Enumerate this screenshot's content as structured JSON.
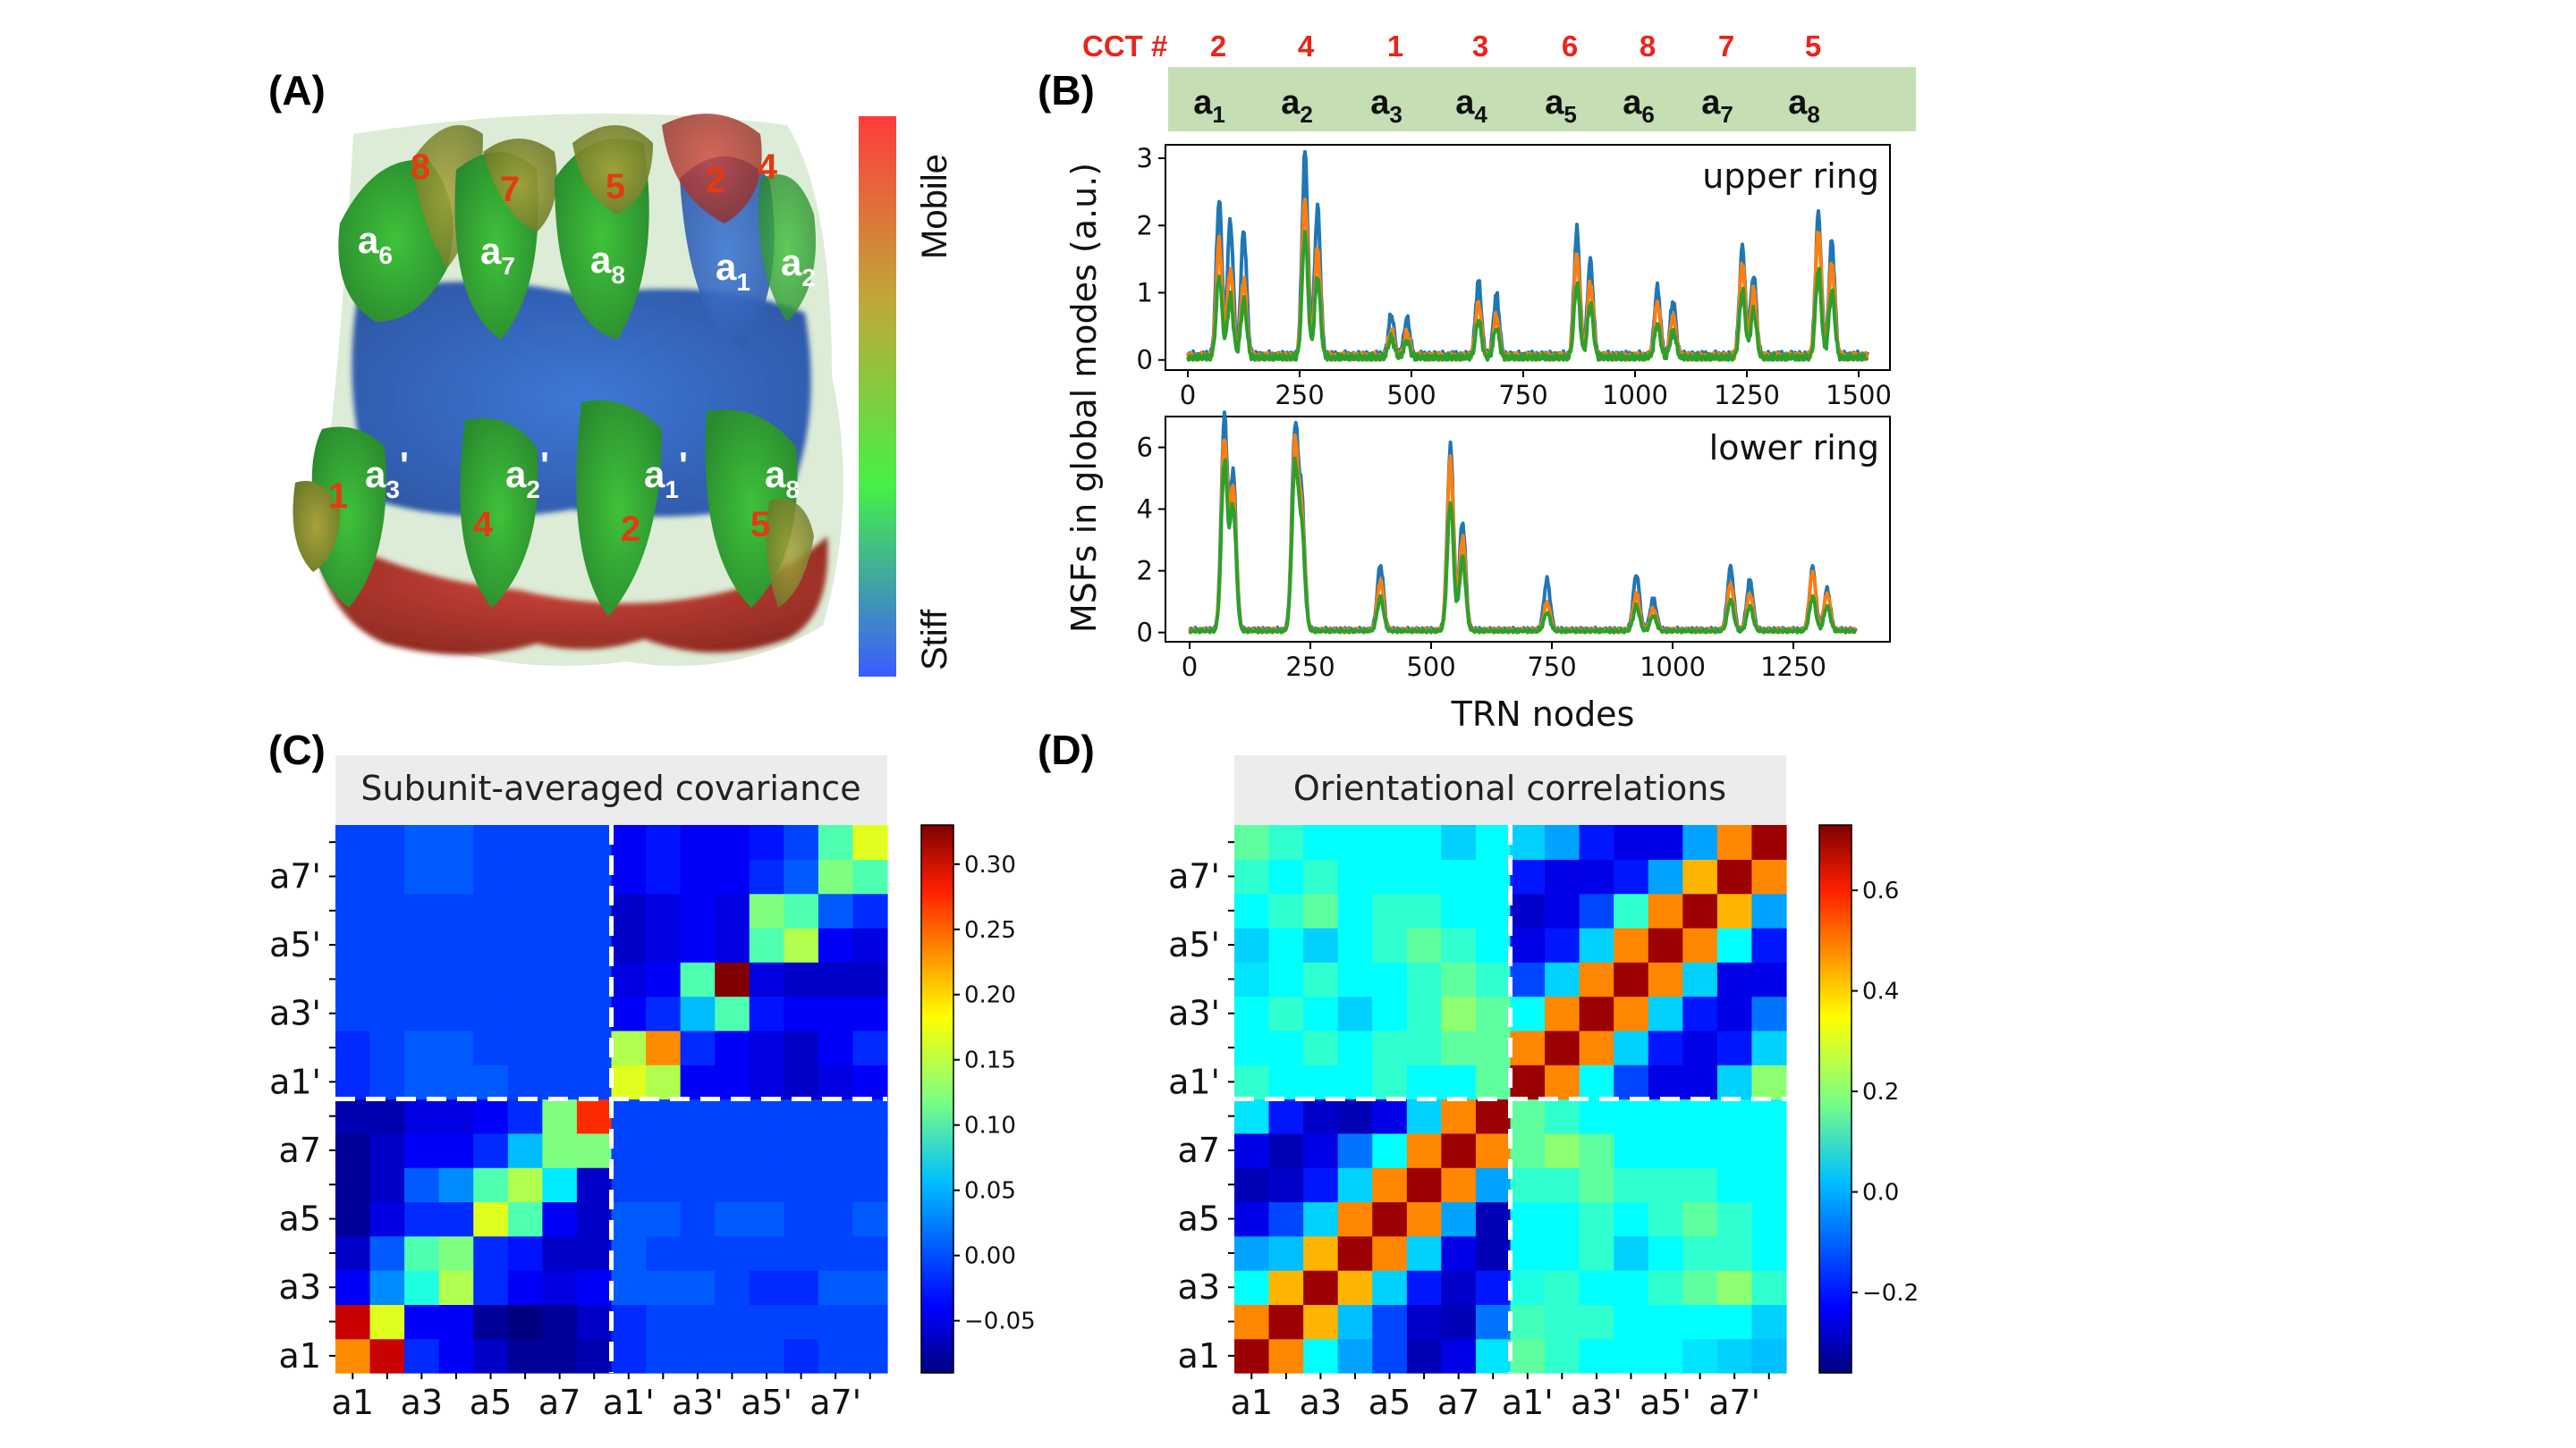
{
  "panel_labels": {
    "A": "(A)",
    "B": "(B)",
    "C": "(C)",
    "D": "(D)"
  },
  "panelA": {
    "colorbar_top": "Mobile",
    "colorbar_bottom": "Stiff",
    "colorbar_colors": [
      "#ff3b3b",
      "#c0a838",
      "#46f046",
      "#3b5bff"
    ],
    "cct_numbers": [
      {
        "text": "8"
      },
      {
        "text": "7"
      },
      {
        "text": "5"
      },
      {
        "text": "2"
      },
      {
        "text": "4"
      },
      {
        "text": "1"
      },
      {
        "text": "4"
      },
      {
        "text": "2"
      },
      {
        "text": "5"
      }
    ],
    "subunit_labels": [
      {
        "base": "a",
        "sub": "6",
        "prime": ""
      },
      {
        "base": "a",
        "sub": "7",
        "prime": ""
      },
      {
        "base": "a",
        "sub": "8",
        "prime": ""
      },
      {
        "base": "a",
        "sub": "1",
        "prime": ""
      },
      {
        "base": "a",
        "sub": "2",
        "prime": ""
      },
      {
        "base": "a",
        "sub": "3",
        "prime": "'"
      },
      {
        "base": "a",
        "sub": "2",
        "prime": "'"
      },
      {
        "base": "a",
        "sub": "1",
        "prime": "'"
      },
      {
        "base": "a",
        "sub": "8",
        "prime": ""
      }
    ]
  },
  "panelB": {
    "cct_header": "CCT #",
    "cct_numbers": [
      "2",
      "4",
      "1",
      "3",
      "6",
      "8",
      "7",
      "5"
    ],
    "subunits": [
      "1",
      "2",
      "3",
      "4",
      "5",
      "6",
      "7",
      "8"
    ],
    "subunit_base": "a",
    "banner_color": "#c5deb4",
    "ylabel": "MSFs in global modes (a.u.)",
    "xlabel": "TRN nodes",
    "series_colors": [
      "#1f77b4",
      "#ff7f0e",
      "#2ca02c"
    ]
  },
  "chart_data": [
    {
      "type": "line",
      "title": "upper ring",
      "xlim": [
        -50,
        1570
      ],
      "ylim": [
        -0.15,
        3.2
      ],
      "xticks": [
        "0",
        "250",
        "500",
        "750",
        "1000",
        "1250",
        "1500"
      ],
      "xtick_values": [
        0,
        250,
        500,
        750,
        1000,
        1250,
        1500
      ],
      "yticks": [
        "0",
        "1",
        "2",
        "3"
      ],
      "ytick_values": [
        0,
        1,
        2,
        3
      ],
      "x_end": 1520,
      "baseline": 0.07,
      "peaks": [
        {
          "x": 70,
          "heights": [
            2.3,
            1.7,
            1.2
          ]
        },
        {
          "x": 95,
          "heights": [
            2.0,
            1.3,
            0.9
          ]
        },
        {
          "x": 125,
          "heights": [
            1.85,
            1.15,
            0.85
          ]
        },
        {
          "x": 262,
          "heights": [
            3.0,
            2.35,
            1.85
          ]
        },
        {
          "x": 290,
          "heights": [
            2.2,
            1.6,
            1.2
          ]
        },
        {
          "x": 455,
          "heights": [
            0.6,
            0.4,
            0.3
          ]
        },
        {
          "x": 490,
          "heights": [
            0.55,
            0.35,
            0.25
          ]
        },
        {
          "x": 650,
          "heights": [
            1.1,
            0.8,
            0.55
          ]
        },
        {
          "x": 690,
          "heights": [
            0.9,
            0.6,
            0.45
          ]
        },
        {
          "x": 870,
          "heights": [
            1.85,
            1.55,
            1.1
          ]
        },
        {
          "x": 900,
          "heights": [
            1.4,
            1.1,
            0.8
          ]
        },
        {
          "x": 1050,
          "heights": [
            1.0,
            0.8,
            0.5
          ]
        },
        {
          "x": 1085,
          "heights": [
            0.8,
            0.6,
            0.4
          ]
        },
        {
          "x": 1240,
          "heights": [
            1.6,
            1.4,
            1.0
          ]
        },
        {
          "x": 1265,
          "heights": [
            1.2,
            1.0,
            0.7
          ]
        },
        {
          "x": 1410,
          "heights": [
            2.1,
            1.9,
            1.3
          ]
        },
        {
          "x": 1440,
          "heights": [
            1.7,
            1.4,
            1.0
          ]
        }
      ]
    },
    {
      "type": "line",
      "title": "lower ring",
      "xlim": [
        -50,
        1450
      ],
      "ylim": [
        -0.3,
        7.0
      ],
      "xticks": [
        "0",
        "250",
        "500",
        "750",
        "1000",
        "1250"
      ],
      "xtick_values": [
        0,
        250,
        500,
        750,
        1000,
        1250
      ],
      "yticks": [
        "0",
        "2",
        "4",
        "6"
      ],
      "ytick_values": [
        0,
        2,
        4,
        6
      ],
      "x_end": 1380,
      "baseline": 0.1,
      "peaks": [
        {
          "x": 72,
          "heights": [
            6.8,
            6.2,
            5.5
          ]
        },
        {
          "x": 90,
          "heights": [
            5.0,
            4.5,
            4.0
          ]
        },
        {
          "x": 218,
          "heights": [
            6.3,
            5.8,
            5.2
          ]
        },
        {
          "x": 232,
          "heights": [
            4.0,
            3.6,
            3.2
          ]
        },
        {
          "x": 395,
          "heights": [
            2.1,
            1.6,
            1.1
          ]
        },
        {
          "x": 540,
          "heights": [
            5.9,
            5.5,
            4.2
          ]
        },
        {
          "x": 565,
          "heights": [
            3.5,
            3.0,
            2.4
          ]
        },
        {
          "x": 740,
          "heights": [
            1.6,
            0.9,
            0.6
          ]
        },
        {
          "x": 925,
          "heights": [
            1.8,
            1.2,
            0.8
          ]
        },
        {
          "x": 960,
          "heights": [
            1.0,
            0.7,
            0.5
          ]
        },
        {
          "x": 1120,
          "heights": [
            2.0,
            1.5,
            1.0
          ]
        },
        {
          "x": 1160,
          "heights": [
            1.6,
            1.2,
            0.8
          ]
        },
        {
          "x": 1290,
          "heights": [
            2.0,
            1.9,
            1.1
          ]
        },
        {
          "x": 1320,
          "heights": [
            1.3,
            1.2,
            0.8
          ]
        }
      ]
    },
    {
      "type": "heatmap",
      "title": "Subunit-averaged covariance",
      "xticks": [
        "a1",
        "a3",
        "a5",
        "a7",
        "a1'",
        "a3'",
        "a5'",
        "a7'"
      ],
      "yticks": [
        "a1",
        "a3",
        "a5",
        "a7",
        "a1'",
        "a3'",
        "a5'",
        "a7'"
      ],
      "n": 16,
      "vmin": -0.09,
      "vmax": 0.33,
      "cbar_ticks": [
        "−0.05",
        "0.00",
        "0.05",
        "0.10",
        "0.15",
        "0.20",
        "0.25",
        "0.30"
      ],
      "cbar_values": [
        -0.05,
        0.0,
        0.05,
        0.1,
        0.15,
        0.2,
        0.25,
        0.3
      ],
      "rows_bottom_to_top": [
        [
          0.22,
          0.3,
          -0.02,
          -0.04,
          -0.06,
          -0.08,
          -0.08,
          -0.07,
          -0.02,
          -0.01,
          -0.01,
          -0.01,
          -0.01,
          -0.02,
          -0.01,
          -0.01
        ],
        [
          0.3,
          0.16,
          -0.04,
          -0.04,
          -0.08,
          -0.09,
          -0.08,
          -0.06,
          -0.02,
          -0.01,
          -0.01,
          -0.01,
          -0.01,
          -0.01,
          -0.01,
          -0.01
        ],
        [
          -0.04,
          0.02,
          0.08,
          0.14,
          -0.02,
          -0.04,
          -0.05,
          -0.04,
          0.0,
          0.0,
          0.0,
          -0.01,
          -0.02,
          -0.02,
          0.0,
          0.0
        ],
        [
          -0.06,
          0.0,
          0.1,
          0.12,
          -0.02,
          -0.03,
          -0.06,
          -0.06,
          0.0,
          -0.01,
          -0.01,
          -0.01,
          -0.01,
          -0.01,
          -0.01,
          -0.01
        ],
        [
          -0.08,
          -0.05,
          -0.02,
          -0.02,
          0.16,
          0.1,
          -0.04,
          -0.06,
          0.0,
          0.0,
          -0.01,
          0.0,
          0.0,
          -0.01,
          -0.01,
          0.0
        ],
        [
          -0.08,
          -0.06,
          0.0,
          0.02,
          0.1,
          0.14,
          0.06,
          -0.06,
          -0.01,
          -0.01,
          -0.01,
          -0.01,
          -0.01,
          -0.01,
          -0.01,
          -0.01
        ],
        [
          -0.08,
          -0.06,
          -0.04,
          -0.04,
          -0.02,
          0.04,
          0.12,
          0.12,
          -0.01,
          -0.01,
          -0.01,
          -0.01,
          -0.01,
          -0.01,
          -0.01,
          -0.01
        ],
        [
          -0.07,
          -0.07,
          -0.05,
          -0.05,
          -0.04,
          -0.02,
          0.12,
          0.26,
          -0.01,
          -0.01,
          -0.01,
          -0.01,
          -0.01,
          -0.01,
          -0.01,
          -0.01
        ],
        [
          -0.02,
          -0.01,
          0.0,
          0.0,
          0.0,
          -0.01,
          -0.01,
          -0.01,
          0.16,
          0.14,
          -0.04,
          -0.04,
          -0.05,
          -0.06,
          -0.05,
          -0.04
        ],
        [
          -0.02,
          -0.01,
          0.0,
          0.0,
          -0.01,
          -0.01,
          -0.01,
          -0.01,
          0.14,
          0.22,
          -0.02,
          -0.04,
          -0.05,
          -0.06,
          -0.04,
          -0.02
        ],
        [
          -0.01,
          -0.01,
          -0.01,
          -0.01,
          -0.01,
          -0.01,
          -0.01,
          -0.01,
          -0.04,
          -0.02,
          0.04,
          0.1,
          -0.03,
          -0.04,
          -0.04,
          -0.04
        ],
        [
          -0.01,
          -0.01,
          -0.01,
          -0.01,
          -0.01,
          -0.01,
          -0.01,
          -0.01,
          -0.05,
          -0.04,
          0.1,
          0.33,
          -0.05,
          -0.06,
          -0.06,
          -0.06
        ],
        [
          -0.01,
          -0.01,
          -0.01,
          -0.01,
          -0.01,
          -0.01,
          -0.01,
          -0.01,
          -0.06,
          -0.05,
          -0.04,
          -0.05,
          0.1,
          0.14,
          -0.04,
          -0.05
        ],
        [
          -0.01,
          -0.01,
          -0.01,
          -0.01,
          -0.01,
          -0.01,
          -0.01,
          -0.01,
          -0.06,
          -0.05,
          -0.04,
          -0.05,
          0.12,
          0.1,
          0.0,
          -0.02
        ],
        [
          -0.01,
          -0.01,
          0.0,
          0.0,
          -0.01,
          -0.01,
          -0.01,
          -0.01,
          -0.04,
          -0.03,
          -0.04,
          -0.04,
          -0.02,
          0.0,
          0.12,
          0.1
        ],
        [
          -0.01,
          -0.01,
          0.0,
          0.0,
          -0.01,
          -0.01,
          -0.01,
          -0.01,
          -0.04,
          -0.03,
          -0.04,
          -0.04,
          -0.03,
          -0.01,
          0.1,
          0.16
        ]
      ]
    },
    {
      "type": "heatmap",
      "title": "Orientational correlations",
      "xticks": [
        "a1",
        "a3",
        "a5",
        "a7",
        "a1'",
        "a3'",
        "a5'",
        "a7'"
      ],
      "yticks": [
        "a1",
        "a3",
        "a5",
        "a7",
        "a1'",
        "a3'",
        "a5'",
        "a7'"
      ],
      "n": 16,
      "vmin": -0.36,
      "vmax": 0.73,
      "cbar_ticks": [
        "−0.2",
        "0.0",
        "0.2",
        "0.4",
        "0.6"
      ],
      "cbar_values": [
        -0.2,
        0.0,
        0.2,
        0.4,
        0.6
      ],
      "rows_bottom_to_top": [
        [
          0.7,
          0.45,
          0.05,
          -0.05,
          -0.15,
          -0.3,
          -0.25,
          0.02,
          0.15,
          0.1,
          0.05,
          0.05,
          0.05,
          0.02,
          0.0,
          -0.02
        ],
        [
          0.45,
          0.7,
          0.4,
          -0.02,
          -0.15,
          -0.28,
          -0.3,
          -0.1,
          0.12,
          0.1,
          0.1,
          0.05,
          0.05,
          0.05,
          0.05,
          0.0
        ],
        [
          0.05,
          0.4,
          0.7,
          0.4,
          0.0,
          -0.2,
          -0.28,
          -0.2,
          0.08,
          0.1,
          0.05,
          0.05,
          0.1,
          0.15,
          0.2,
          0.1
        ],
        [
          -0.05,
          -0.02,
          0.4,
          0.7,
          0.45,
          0.0,
          -0.25,
          -0.3,
          0.05,
          0.05,
          0.1,
          0.0,
          0.05,
          0.1,
          0.1,
          0.05
        ],
        [
          -0.25,
          -0.15,
          0.0,
          0.45,
          0.7,
          0.45,
          -0.05,
          -0.3,
          0.05,
          0.05,
          0.1,
          0.05,
          0.1,
          0.15,
          0.1,
          0.05
        ],
        [
          -0.3,
          -0.28,
          -0.2,
          0.0,
          0.45,
          0.7,
          0.45,
          -0.05,
          0.1,
          0.1,
          0.15,
          0.1,
          0.1,
          0.1,
          0.05,
          0.05
        ],
        [
          -0.25,
          -0.3,
          -0.25,
          -0.1,
          0.05,
          0.45,
          0.7,
          0.45,
          0.15,
          0.2,
          0.15,
          0.05,
          0.05,
          0.05,
          0.05,
          0.05
        ],
        [
          0.02,
          -0.2,
          -0.28,
          -0.3,
          -0.25,
          0.0,
          0.45,
          0.7,
          0.15,
          0.1,
          0.05,
          0.05,
          0.05,
          0.05,
          0.05,
          0.05
        ],
        [
          0.1,
          0.05,
          0.05,
          0.05,
          0.1,
          0.05,
          0.05,
          0.15,
          0.7,
          0.45,
          0.05,
          -0.15,
          -0.25,
          -0.25,
          0.0,
          0.2
        ],
        [
          0.05,
          0.05,
          0.1,
          0.05,
          0.1,
          0.1,
          0.15,
          0.15,
          0.45,
          0.7,
          0.45,
          0.0,
          -0.2,
          -0.25,
          -0.2,
          0.0
        ],
        [
          0.05,
          0.1,
          0.05,
          0.0,
          0.05,
          0.1,
          0.2,
          0.15,
          0.05,
          0.45,
          0.7,
          0.45,
          0.0,
          -0.2,
          -0.25,
          -0.1
        ],
        [
          0.02,
          0.05,
          0.1,
          0.05,
          0.05,
          0.1,
          0.15,
          0.1,
          -0.15,
          0.0,
          0.45,
          0.7,
          0.45,
          0.0,
          -0.25,
          -0.25
        ],
        [
          0.0,
          0.05,
          0.0,
          0.05,
          0.1,
          0.15,
          0.1,
          0.05,
          -0.25,
          -0.2,
          0.0,
          0.45,
          0.7,
          0.45,
          0.05,
          -0.2
        ],
        [
          0.05,
          0.1,
          0.15,
          0.05,
          0.1,
          0.1,
          0.05,
          0.05,
          -0.28,
          -0.25,
          -0.15,
          0.1,
          0.45,
          0.7,
          0.4,
          -0.05
        ],
        [
          0.1,
          0.05,
          0.1,
          0.05,
          0.05,
          0.05,
          0.05,
          0.05,
          -0.2,
          -0.25,
          -0.25,
          -0.2,
          -0.05,
          0.4,
          0.7,
          0.45
        ],
        [
          0.15,
          0.1,
          0.05,
          0.05,
          0.05,
          0.05,
          0.0,
          0.05,
          0.0,
          -0.05,
          -0.2,
          -0.25,
          -0.25,
          -0.05,
          0.45,
          0.7
        ]
      ]
    }
  ]
}
